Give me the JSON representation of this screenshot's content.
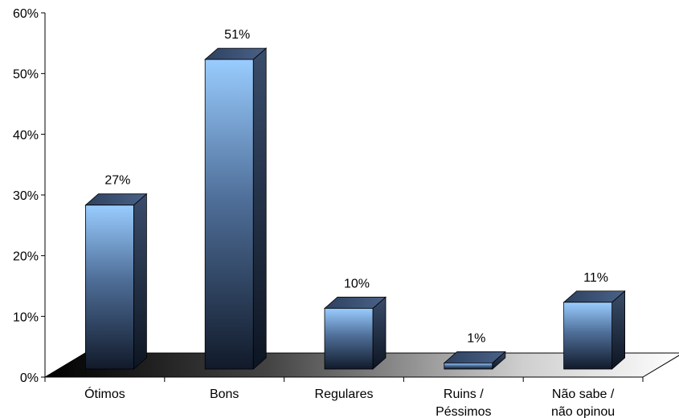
{
  "chart_data": {
    "type": "bar",
    "title": "",
    "xlabel": "",
    "ylabel": "",
    "ylim": [
      0,
      60
    ],
    "yticks": [
      "0%",
      "10%",
      "20%",
      "30%",
      "40%",
      "50%",
      "60%"
    ],
    "categories": [
      [
        "Ótimos"
      ],
      [
        "Bons"
      ],
      [
        "Regulares"
      ],
      [
        "Ruins /",
        "Péssimos"
      ],
      [
        "Não sabe /",
        "não opinou"
      ]
    ],
    "values": [
      27,
      51,
      10,
      1,
      11
    ],
    "data_labels": [
      "27%",
      "51%",
      "10%",
      "1%",
      "11%"
    ],
    "style": "3d-column",
    "grid": false,
    "colors": {
      "bar_top": "#99ccff",
      "bar_bottom": "#111a2a",
      "bar_side": "#2c3c55",
      "floor_dark": "#000000",
      "floor_light": "#ffffff"
    }
  }
}
